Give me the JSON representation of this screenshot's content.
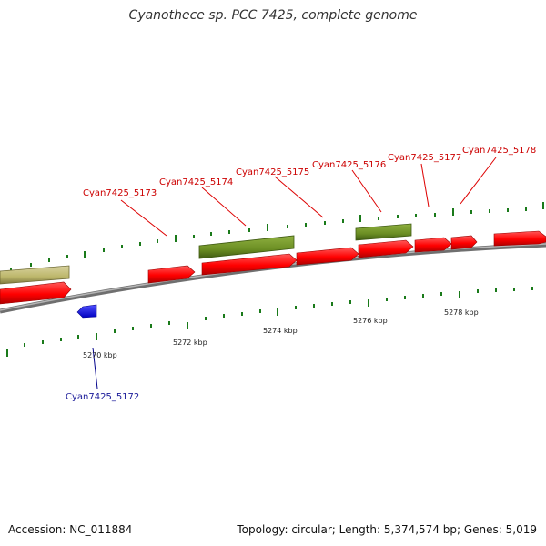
{
  "title": "Cyanothece sp. PCC 7425, complete genome",
  "footer": {
    "accession": "Accession: NC_011884",
    "summary": "Topology: circular; Length: 5,374,574 bp; Genes: 5,019"
  },
  "colors": {
    "forward_cds": "#ff0000",
    "reverse_cds": "#0000ff",
    "highlight_forward": "#6b8e23",
    "highlight_other": "#bdb76b",
    "backbone": "#808080",
    "tick": "#006400",
    "label_forward": "#cc0000",
    "label_reverse": "#00008b"
  },
  "genes": [
    {
      "id": "Cyan7425_5172",
      "label": "Cyan7425_5172",
      "strand": "reverse"
    },
    {
      "id": "Cyan7425_5173",
      "label": "Cyan7425_5173",
      "strand": "forward"
    },
    {
      "id": "Cyan7425_5174",
      "label": "Cyan7425_5174",
      "strand": "forward"
    },
    {
      "id": "Cyan7425_5175",
      "label": "Cyan7425_5175",
      "strand": "forward"
    },
    {
      "id": "Cyan7425_5176",
      "label": "Cyan7425_5176",
      "strand": "forward"
    },
    {
      "id": "Cyan7425_5177",
      "label": "Cyan7425_5177",
      "strand": "forward"
    },
    {
      "id": "Cyan7425_5178",
      "label": "Cyan7425_5178",
      "strand": "forward"
    }
  ],
  "ticks": [
    {
      "label": "5270 kbp"
    },
    {
      "label": "5272 kbp"
    },
    {
      "label": "5274 kbp"
    },
    {
      "label": "5276 kbp"
    },
    {
      "label": "5278 kbp"
    }
  ]
}
